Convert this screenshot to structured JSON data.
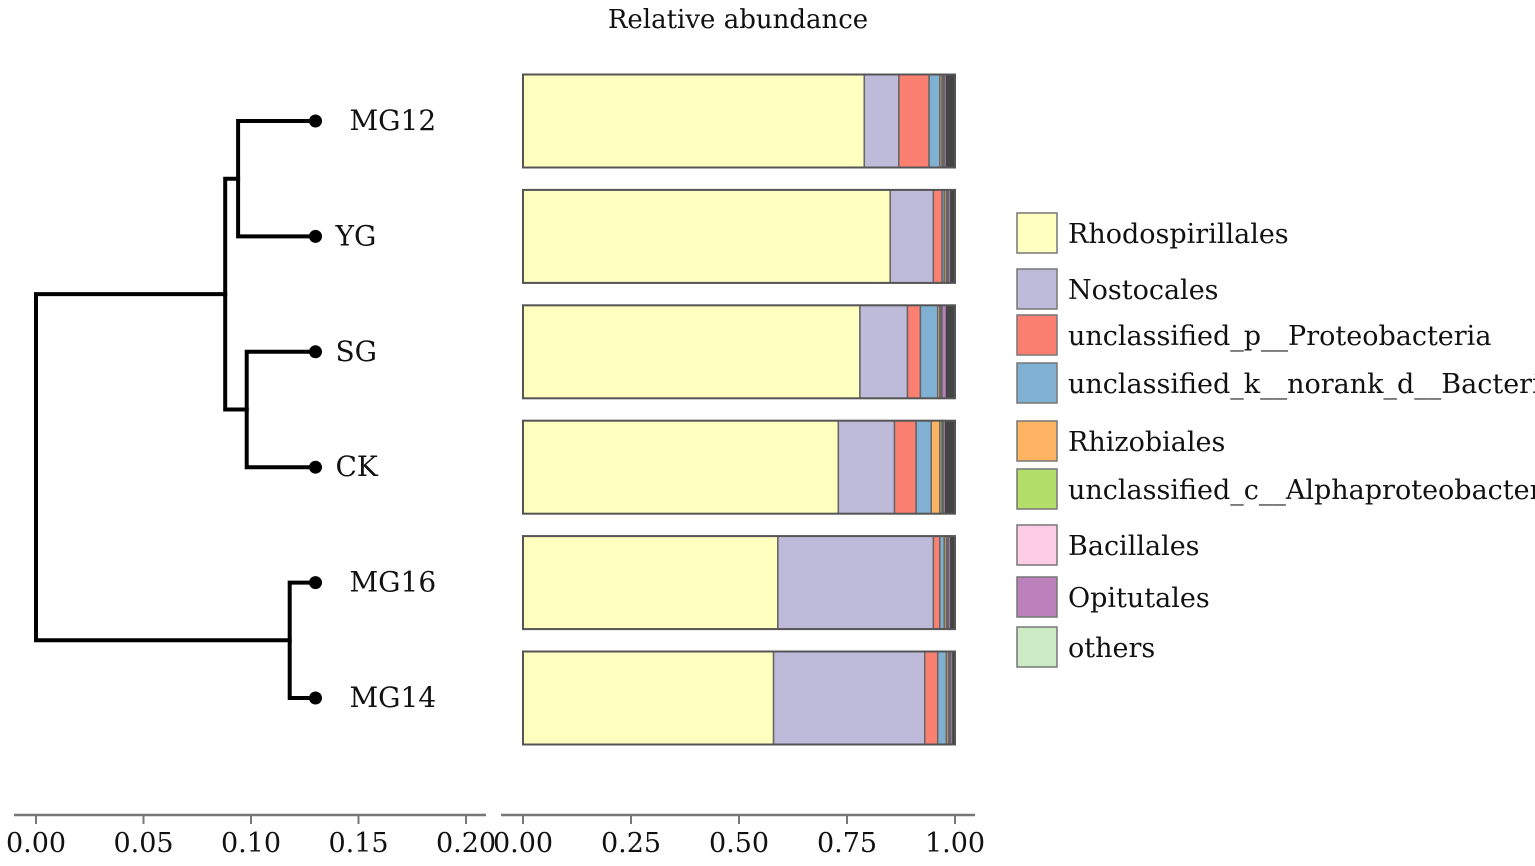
{
  "chart_data": [
    {
      "type": "dendrogram",
      "leaves": [
        "MG12",
        "YG",
        "SG",
        "CK",
        "MG16",
        "MG14"
      ],
      "axis": {
        "range": [
          0,
          0.2
        ],
        "ticks": [
          "0.00",
          "0.05",
          "0.10",
          "0.15",
          "0.20"
        ]
      },
      "nodes": [
        {
          "children": [
            "MG12",
            "YG"
          ],
          "height": 0.094
        },
        {
          "children": [
            "SG",
            "CK"
          ],
          "height": 0.098
        },
        {
          "children": [
            0,
            1
          ],
          "height": 0.088
        },
        {
          "children": [
            "MG16",
            "MG14"
          ],
          "height": 0.118
        },
        {
          "children": [
            2,
            3
          ],
          "height": 0.0
        }
      ],
      "leaf_height": 0.13
    },
    {
      "type": "bar",
      "orientation": "horizontal",
      "stacked": true,
      "title": "Relative abundance",
      "categories": [
        "MG12",
        "YG",
        "SG",
        "CK",
        "MG16",
        "MG14"
      ],
      "axis": {
        "range": [
          0,
          1
        ],
        "ticks": [
          "0.00",
          "0.25",
          "0.50",
          "0.75",
          "1.00"
        ]
      },
      "series": [
        {
          "name": "Rhodospirillales",
          "color": "#FFFFBF",
          "values": [
            0.79,
            0.85,
            0.78,
            0.73,
            0.59,
            0.58
          ]
        },
        {
          "name": "Nostocales",
          "color": "#BEBADA",
          "values": [
            0.08,
            0.1,
            0.11,
            0.13,
            0.36,
            0.35
          ]
        },
        {
          "name": "unclassified_p__Proteobacteria",
          "color": "#FB8072",
          "values": [
            0.07,
            0.02,
            0.03,
            0.05,
            0.015,
            0.03
          ]
        },
        {
          "name": "unclassified_k__norank_d__Bacteria",
          "color": "#80B1D3",
          "values": [
            0.025,
            0.005,
            0.04,
            0.035,
            0.01,
            0.02
          ]
        },
        {
          "name": "Rhizobiales",
          "color": "#FDB462",
          "values": [
            0.005,
            0.005,
            0.005,
            0.02,
            0.005,
            0.005
          ]
        },
        {
          "name": "unclassified_c__Alphaproteobacteria",
          "color": "#B3DE69",
          "values": [
            0.003,
            0.003,
            0.003,
            0.005,
            0.003,
            0.003
          ]
        },
        {
          "name": "Bacillales",
          "color": "#FCCDE5",
          "values": [
            0.002,
            0.002,
            0.002,
            0.003,
            0.002,
            0.002
          ]
        },
        {
          "name": "Opitutales",
          "color": "#BC80BD",
          "values": [
            0.005,
            0.005,
            0.01,
            0.005,
            0.005,
            0.005
          ]
        },
        {
          "name": "others",
          "color": "#CCEBC5",
          "values": [
            0.0,
            0.0,
            0.0,
            0.0,
            0.0,
            0.0
          ]
        }
      ],
      "legend": "right"
    }
  ]
}
